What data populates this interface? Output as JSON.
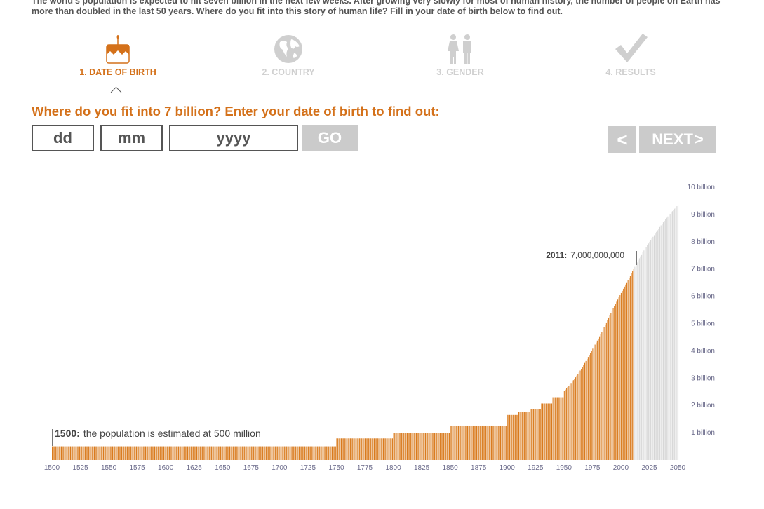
{
  "intro": "The world's population is expected to hit seven billion in the next few weeks. After growing very slowly for most of human history, the number of people on Earth has more than doubled in the last 50 years. Where do you fit into this story of human life? Fill in your date of birth below to find out.",
  "steps": [
    {
      "label": "1. DATE OF BIRTH",
      "icon": "birthday-cake-icon",
      "active": true
    },
    {
      "label": "2. COUNTRY",
      "icon": "globe-icon",
      "active": false
    },
    {
      "label": "3. GENDER",
      "icon": "male-female-icon",
      "active": false
    },
    {
      "label": "4. RESULTS",
      "icon": "checkmark-icon",
      "active": false
    }
  ],
  "question": "Where do you fit into 7 billion? Enter your date of birth to find out:",
  "form": {
    "dd_placeholder": "dd",
    "mm_placeholder": "mm",
    "yyyy_placeholder": "yyyy",
    "go_label": "GO",
    "prev_label": "<",
    "next_label": "NEXT"
  },
  "colors": {
    "accent": "#d4711a",
    "bar_past": "#d97a1c",
    "bar_future": "#d6d6d6",
    "disabled": "#cbcbcb"
  },
  "chart_data": {
    "type": "bar",
    "x_range": [
      1500,
      2050
    ],
    "ylim": [
      0,
      10
    ],
    "x_ticks": [
      "1500",
      "1525",
      "1550",
      "1575",
      "1600",
      "1625",
      "1650",
      "1675",
      "1700",
      "1725",
      "1750",
      "1775",
      "1800",
      "1825",
      "1850",
      "1875",
      "1900",
      "1925",
      "1950",
      "1975",
      "2000",
      "2025",
      "2050"
    ],
    "y_ticks": [
      "1 billion",
      "2 billion",
      "3 billion",
      "4 billion",
      "5 billion",
      "6 billion",
      "7 billion",
      "8 billion",
      "9 billion",
      "10 billion"
    ],
    "unit": "billion",
    "steps": [
      {
        "from": 1500,
        "to": 1749,
        "value": 0.5
      },
      {
        "from": 1750,
        "to": 1799,
        "value": 0.79
      },
      {
        "from": 1800,
        "to": 1849,
        "value": 0.98
      },
      {
        "from": 1850,
        "to": 1899,
        "value": 1.26
      },
      {
        "from": 1900,
        "to": 1909,
        "value": 1.65
      },
      {
        "from": 1910,
        "to": 1919,
        "value": 1.75
      },
      {
        "from": 1920,
        "to": 1929,
        "value": 1.86
      },
      {
        "from": 1930,
        "to": 1939,
        "value": 2.07
      },
      {
        "from": 1940,
        "to": 1949,
        "value": 2.3
      }
    ],
    "yearly_points": [
      [
        1950,
        2.53
      ],
      [
        1955,
        2.77
      ],
      [
        1960,
        3.03
      ],
      [
        1965,
        3.34
      ],
      [
        1970,
        3.7
      ],
      [
        1975,
        4.08
      ],
      [
        1980,
        4.45
      ],
      [
        1985,
        4.86
      ],
      [
        1990,
        5.31
      ],
      [
        1995,
        5.72
      ],
      [
        2000,
        6.12
      ],
      [
        2005,
        6.51
      ],
      [
        2010,
        6.92
      ],
      [
        2011,
        7.0
      ],
      [
        2015,
        7.32
      ],
      [
        2020,
        7.68
      ],
      [
        2025,
        8.0
      ],
      [
        2030,
        8.3
      ],
      [
        2035,
        8.6
      ],
      [
        2040,
        8.88
      ],
      [
        2045,
        9.12
      ],
      [
        2050,
        9.35
      ]
    ],
    "current_year": 2011,
    "annotations": [
      {
        "year": "1500:",
        "text": "the population is estimated at 500 million"
      },
      {
        "year": "2011:",
        "text": "7,000,000,000"
      }
    ]
  }
}
